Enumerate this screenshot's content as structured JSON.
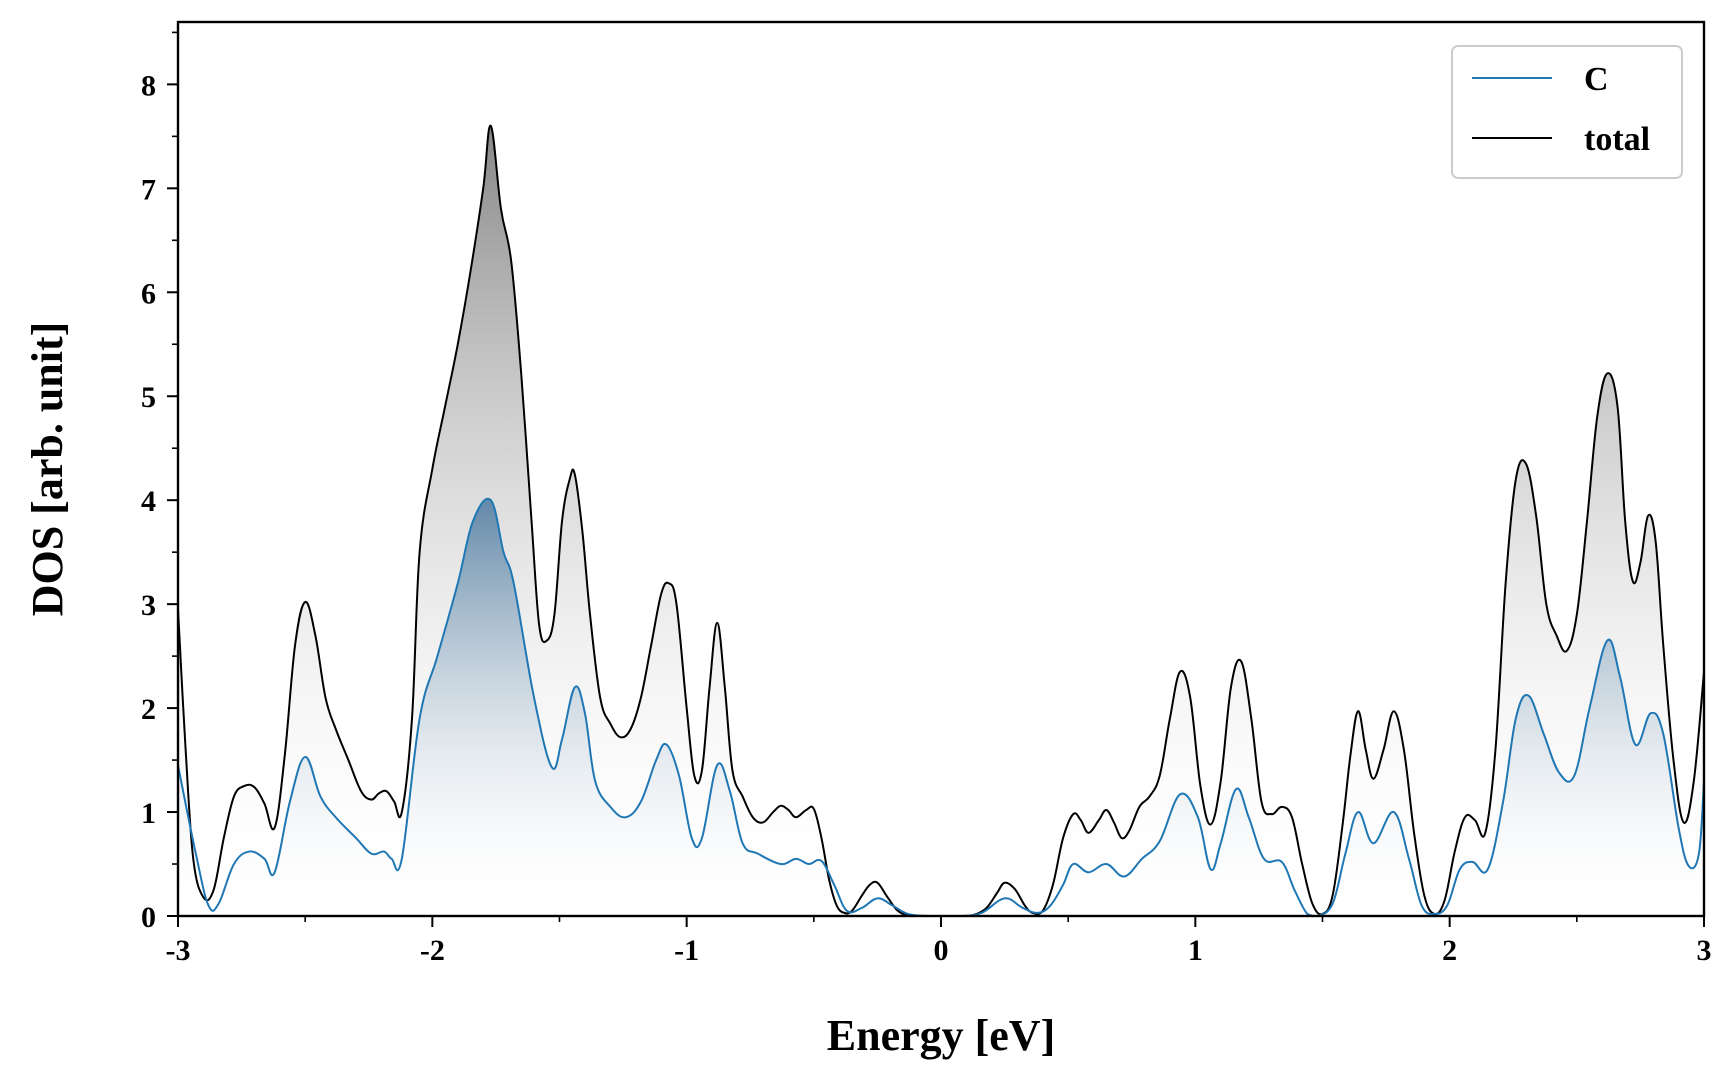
{
  "chart_data": {
    "type": "area",
    "title": "",
    "xlabel": "Energy [eV]",
    "ylabel": "DOS [arb. unit]",
    "xlim": [
      -3,
      3
    ],
    "ylim": [
      0,
      8.6
    ],
    "xticks": [
      -3,
      -2,
      -1,
      0,
      1,
      2,
      3
    ],
    "xtick_labels": [
      "-3",
      "-2",
      "-1",
      "0",
      "1",
      "2",
      "3"
    ],
    "yticks": [
      0,
      1,
      2,
      3,
      4,
      5,
      6,
      7,
      8
    ],
    "ytick_labels": [
      "0",
      "1",
      "2",
      "3",
      "4",
      "5",
      "6",
      "7",
      "8"
    ],
    "grid": false,
    "legend": {
      "position": "top-right"
    },
    "series": [
      {
        "name": "C",
        "color": "#1f77b4",
        "fill": "gradient-blue",
        "x": [
          -3.0,
          -2.93,
          -2.88,
          -2.84,
          -2.78,
          -2.72,
          -2.66,
          -2.62,
          -2.56,
          -2.5,
          -2.44,
          -2.38,
          -2.3,
          -2.24,
          -2.19,
          -2.16,
          -2.12,
          -2.05,
          -1.98,
          -1.9,
          -1.84,
          -1.77,
          -1.72,
          -1.68,
          -1.6,
          -1.53,
          -1.49,
          -1.44,
          -1.4,
          -1.36,
          -1.3,
          -1.24,
          -1.18,
          -1.12,
          -1.08,
          -1.03,
          -0.98,
          -0.94,
          -0.88,
          -0.83,
          -0.78,
          -0.72,
          -0.63,
          -0.57,
          -0.52,
          -0.47,
          -0.42,
          -0.37,
          -0.31,
          -0.25,
          -0.19,
          -0.13,
          -0.05,
          0.0,
          0.08,
          0.16,
          0.25,
          0.32,
          0.38,
          0.43,
          0.48,
          0.52,
          0.58,
          0.65,
          0.72,
          0.79,
          0.86,
          0.94,
          1.01,
          1.06,
          1.1,
          1.16,
          1.21,
          1.27,
          1.34,
          1.39,
          1.44,
          1.48,
          1.54,
          1.59,
          1.64,
          1.7,
          1.78,
          1.84,
          1.89,
          1.94,
          1.99,
          2.04,
          2.09,
          2.15,
          2.21,
          2.26,
          2.31,
          2.37,
          2.43,
          2.49,
          2.55,
          2.62,
          2.67,
          2.73,
          2.79,
          2.84,
          2.9,
          2.94,
          2.98,
          3.0
        ],
        "values": [
          1.45,
          0.6,
          0.1,
          0.12,
          0.5,
          0.62,
          0.55,
          0.42,
          1.1,
          1.53,
          1.15,
          0.95,
          0.75,
          0.6,
          0.62,
          0.55,
          0.55,
          1.9,
          2.5,
          3.2,
          3.8,
          4.0,
          3.5,
          3.2,
          2.1,
          1.43,
          1.7,
          2.2,
          1.95,
          1.3,
          1.05,
          0.95,
          1.1,
          1.5,
          1.65,
          1.35,
          0.75,
          0.75,
          1.45,
          1.2,
          0.7,
          0.6,
          0.5,
          0.55,
          0.5,
          0.53,
          0.3,
          0.05,
          0.08,
          0.17,
          0.1,
          0.02,
          0.0,
          0.0,
          0.0,
          0.03,
          0.17,
          0.08,
          0.03,
          0.1,
          0.3,
          0.5,
          0.42,
          0.5,
          0.38,
          0.55,
          0.72,
          1.17,
          0.95,
          0.45,
          0.7,
          1.22,
          0.95,
          0.55,
          0.52,
          0.25,
          0.02,
          0.0,
          0.12,
          0.6,
          1.0,
          0.7,
          1.0,
          0.55,
          0.1,
          0.02,
          0.1,
          0.45,
          0.52,
          0.45,
          1.1,
          1.9,
          2.12,
          1.75,
          1.38,
          1.35,
          2.0,
          2.65,
          2.3,
          1.65,
          1.95,
          1.75,
          0.85,
          0.48,
          0.6,
          1.3
        ]
      },
      {
        "name": "total",
        "color": "#000000",
        "fill": "gradient-gray",
        "x": [
          -3.0,
          -2.97,
          -2.94,
          -2.9,
          -2.86,
          -2.82,
          -2.78,
          -2.74,
          -2.7,
          -2.66,
          -2.62,
          -2.58,
          -2.54,
          -2.5,
          -2.46,
          -2.42,
          -2.38,
          -2.33,
          -2.28,
          -2.24,
          -2.21,
          -2.18,
          -2.15,
          -2.12,
          -2.08,
          -2.05,
          -2.0,
          -1.95,
          -1.9,
          -1.85,
          -1.8,
          -1.77,
          -1.73,
          -1.69,
          -1.65,
          -1.61,
          -1.58,
          -1.55,
          -1.52,
          -1.49,
          -1.46,
          -1.44,
          -1.41,
          -1.38,
          -1.34,
          -1.3,
          -1.26,
          -1.22,
          -1.18,
          -1.14,
          -1.1,
          -1.07,
          -1.04,
          -1.0,
          -0.97,
          -0.94,
          -0.91,
          -0.88,
          -0.85,
          -0.82,
          -0.78,
          -0.74,
          -0.7,
          -0.66,
          -0.63,
          -0.6,
          -0.57,
          -0.53,
          -0.5,
          -0.47,
          -0.44,
          -0.41,
          -0.38,
          -0.35,
          -0.31,
          -0.28,
          -0.25,
          -0.21,
          -0.17,
          -0.13,
          -0.08,
          -0.03,
          0.0,
          0.05,
          0.1,
          0.14,
          0.18,
          0.22,
          0.25,
          0.29,
          0.33,
          0.36,
          0.4,
          0.44,
          0.48,
          0.52,
          0.55,
          0.58,
          0.62,
          0.65,
          0.68,
          0.71,
          0.74,
          0.78,
          0.82,
          0.86,
          0.9,
          0.94,
          0.98,
          1.02,
          1.06,
          1.1,
          1.14,
          1.18,
          1.22,
          1.26,
          1.3,
          1.34,
          1.38,
          1.42,
          1.46,
          1.5,
          1.54,
          1.58,
          1.61,
          1.64,
          1.67,
          1.7,
          1.74,
          1.78,
          1.82,
          1.86,
          1.9,
          1.94,
          1.98,
          2.02,
          2.06,
          2.1,
          2.14,
          2.18,
          2.22,
          2.26,
          2.3,
          2.34,
          2.38,
          2.42,
          2.46,
          2.5,
          2.54,
          2.58,
          2.62,
          2.66,
          2.69,
          2.72,
          2.75,
          2.78,
          2.81,
          2.84,
          2.88,
          2.92,
          2.96,
          3.0
        ],
        "values": [
          2.95,
          1.6,
          0.55,
          0.18,
          0.25,
          0.75,
          1.15,
          1.25,
          1.24,
          1.08,
          0.85,
          1.55,
          2.6,
          3.02,
          2.7,
          2.1,
          1.8,
          1.5,
          1.2,
          1.12,
          1.18,
          1.2,
          1.1,
          1.0,
          1.9,
          3.5,
          4.3,
          4.9,
          5.5,
          6.2,
          7.0,
          7.6,
          6.8,
          6.3,
          5.2,
          3.8,
          2.8,
          2.65,
          2.9,
          3.8,
          4.2,
          4.25,
          3.7,
          2.9,
          2.1,
          1.85,
          1.72,
          1.8,
          2.1,
          2.6,
          3.1,
          3.2,
          3.0,
          2.0,
          1.35,
          1.4,
          2.2,
          2.82,
          2.2,
          1.4,
          1.15,
          0.95,
          0.9,
          1.0,
          1.06,
          1.02,
          0.95,
          1.02,
          1.03,
          0.75,
          0.35,
          0.1,
          0.03,
          0.05,
          0.2,
          0.3,
          0.32,
          0.18,
          0.05,
          0.01,
          0.0,
          0.0,
          0.0,
          0.0,
          0.0,
          0.02,
          0.08,
          0.22,
          0.32,
          0.26,
          0.1,
          0.03,
          0.05,
          0.3,
          0.75,
          0.98,
          0.92,
          0.8,
          0.92,
          1.02,
          0.9,
          0.75,
          0.82,
          1.05,
          1.15,
          1.35,
          1.9,
          2.35,
          2.1,
          1.25,
          0.88,
          1.3,
          2.2,
          2.45,
          1.9,
          1.1,
          0.98,
          1.05,
          0.95,
          0.5,
          0.12,
          0.02,
          0.2,
          0.9,
          1.55,
          1.97,
          1.6,
          1.32,
          1.6,
          1.97,
          1.6,
          0.8,
          0.2,
          0.02,
          0.15,
          0.62,
          0.95,
          0.92,
          0.8,
          1.6,
          3.2,
          4.2,
          4.35,
          3.85,
          3.0,
          2.7,
          2.55,
          2.9,
          3.8,
          4.8,
          5.22,
          4.9,
          3.8,
          3.22,
          3.4,
          3.85,
          3.6,
          2.6,
          1.5,
          0.9,
          1.3,
          2.35
        ]
      }
    ]
  }
}
